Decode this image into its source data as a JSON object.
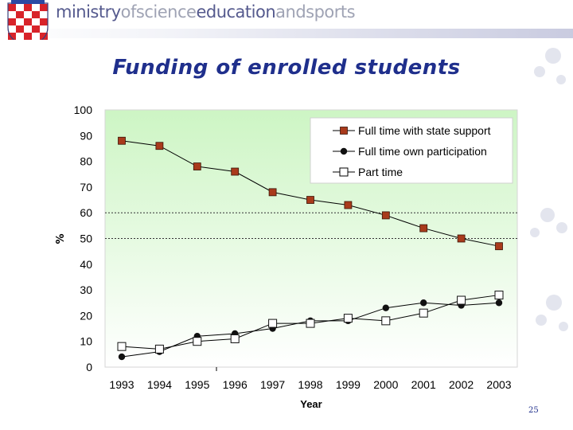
{
  "banner": {
    "words": [
      "ministry",
      "ofscience",
      "education",
      "andsports"
    ],
    "accent_color": "#1f2f8c",
    "logo": "croatian-checkerboard-crest"
  },
  "slide": {
    "title": "Funding of enrolled students",
    "page_number": "25"
  },
  "chart_data": {
    "type": "line",
    "categories": [
      "1993",
      "1994",
      "1995",
      "1996",
      "1997",
      "1998",
      "1999",
      "2000",
      "2001",
      "2002",
      "2003"
    ],
    "xlabel": "Year",
    "ylabel": "%",
    "ylim": [
      0,
      100
    ],
    "yticks": [
      0,
      10,
      20,
      30,
      40,
      50,
      60,
      70,
      80,
      90,
      100
    ],
    "grid": "dotted lines at 50 and 60",
    "plot_background": "light green gradient",
    "legend_position": "top-right",
    "series": [
      {
        "name": "Full time with state support",
        "marker": "filled-square",
        "color": "#a93a1b",
        "values": [
          88,
          86,
          78,
          76,
          68,
          65,
          63,
          59,
          54,
          50,
          47
        ]
      },
      {
        "name": "Full time own participation",
        "marker": "filled-circle",
        "color": "#111111",
        "values": [
          4,
          6,
          12,
          13,
          15,
          18,
          18,
          23,
          25,
          24,
          25
        ]
      },
      {
        "name": "Part time",
        "marker": "open-square",
        "color": "#111111",
        "values": [
          8,
          7,
          10,
          11,
          17,
          17,
          19,
          18,
          21,
          26,
          28
        ]
      }
    ]
  }
}
